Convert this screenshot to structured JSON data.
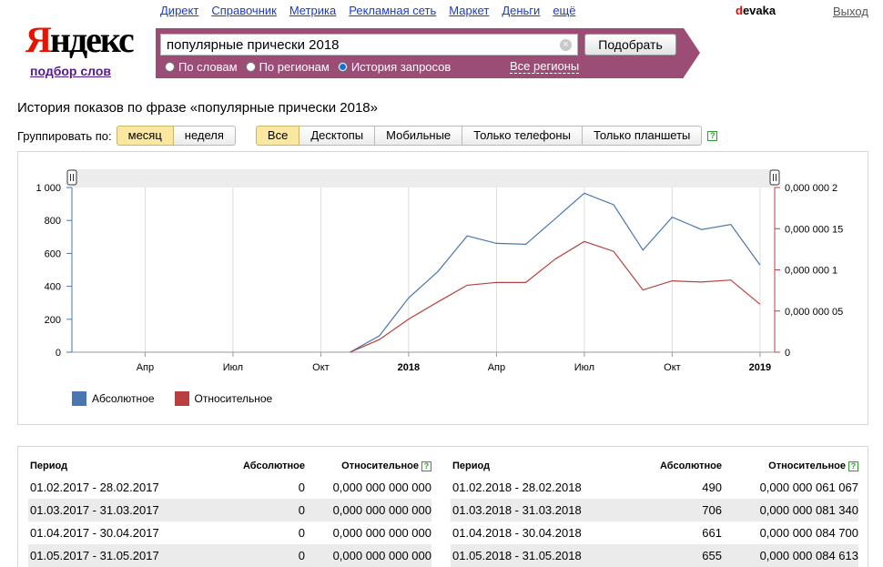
{
  "nav": {
    "links": [
      "Директ",
      "Справочник",
      "Метрика",
      "Рекламная сеть",
      "Маркет",
      "Деньги",
      "ещё"
    ],
    "user_first": "d",
    "user_rest": "evaka",
    "logout": "Выход"
  },
  "logo": {
    "first": "Я",
    "rest": "ндекс",
    "sub": "подбор слов"
  },
  "search": {
    "value": "популярные прически 2018",
    "submit": "Подобрать",
    "modes": [
      {
        "label": "По словам",
        "selected": false
      },
      {
        "label": "По регионам",
        "selected": false
      },
      {
        "label": "История запросов",
        "selected": true
      }
    ],
    "regions": "Все регионы"
  },
  "page": {
    "heading": "История показов по фразе «популярные прически 2018»"
  },
  "grouping": {
    "label": "Группировать по:",
    "options": [
      "месяц",
      "неделя"
    ],
    "active": "месяц"
  },
  "devices": {
    "options": [
      "Все",
      "Десктопы",
      "Мобильные",
      "Только телефоны",
      "Только планшеты"
    ],
    "active": "Все"
  },
  "help_glyph": "?",
  "chart_data": {
    "type": "line",
    "x_tick_labels": [
      "Апр",
      "Июл",
      "Окт",
      "2018",
      "Апр",
      "Июл",
      "Окт",
      "2019"
    ],
    "y_left": {
      "ticks": [
        "0",
        "200",
        "400",
        "600",
        "800",
        "1 000"
      ],
      "range": [
        0,
        1000
      ]
    },
    "y_right": {
      "ticks": [
        "0",
        "0,000 000 05",
        "0,000 000 1",
        "0,000 000 15",
        "0,000 000 2"
      ],
      "range": [
        0,
        2e-07
      ]
    },
    "x": [
      "2017-02",
      "2017-03",
      "2017-04",
      "2017-05",
      "2017-06",
      "2017-07",
      "2017-08",
      "2017-09",
      "2017-10",
      "2017-11",
      "2017-12",
      "2018-01",
      "2018-02",
      "2018-03",
      "2018-04",
      "2018-05",
      "2018-06",
      "2018-07",
      "2018-08",
      "2018-09",
      "2018-10",
      "2018-11",
      "2018-12",
      "2019-01"
    ],
    "series": [
      {
        "name": "Абсолютное",
        "axis": "left",
        "color": "#4a77b0",
        "values": [
          0,
          0,
          0,
          0,
          0,
          0,
          0,
          0,
          0,
          0,
          100,
          330,
          490,
          706,
          661,
          655,
          810,
          965,
          895,
          620,
          820,
          745,
          775,
          530
        ]
      },
      {
        "name": "Относительное",
        "axis": "right",
        "color": "#b84040",
        "values": [
          0,
          0,
          0,
          0,
          0,
          0,
          0,
          0,
          0,
          0,
          1.54e-08,
          4.02e-08,
          6.1067e-08,
          8.134e-08,
          8.47e-08,
          8.4613e-08,
          1.13e-07,
          1.345e-07,
          1.224e-07,
          7.56e-08,
          8.66e-08,
          8.52e-08,
          8.76e-08,
          5.82e-08
        ]
      }
    ]
  },
  "table": {
    "headers": {
      "period": "Период",
      "abs": "Абсолютное",
      "rel": "Относительное"
    },
    "left": [
      {
        "period": "01.02.2017 - 28.02.2017",
        "abs": "0",
        "rel": "0,000 000 000 000"
      },
      {
        "period": "01.03.2017 - 31.03.2017",
        "abs": "0",
        "rel": "0,000 000 000 000"
      },
      {
        "period": "01.04.2017 - 30.04.2017",
        "abs": "0",
        "rel": "0,000 000 000 000"
      },
      {
        "period": "01.05.2017 - 31.05.2017",
        "abs": "0",
        "rel": "0,000 000 000 000"
      }
    ],
    "right": [
      {
        "period": "01.02.2018 - 28.02.2018",
        "abs": "490",
        "rel": "0,000 000 061 067"
      },
      {
        "period": "01.03.2018 - 31.03.2018",
        "abs": "706",
        "rel": "0,000 000 081 340"
      },
      {
        "period": "01.04.2018 - 30.04.2018",
        "abs": "661",
        "rel": "0,000 000 084 700"
      },
      {
        "period": "01.05.2018 - 31.05.2018",
        "abs": "655",
        "rel": "0,000 000 084 613"
      }
    ]
  }
}
